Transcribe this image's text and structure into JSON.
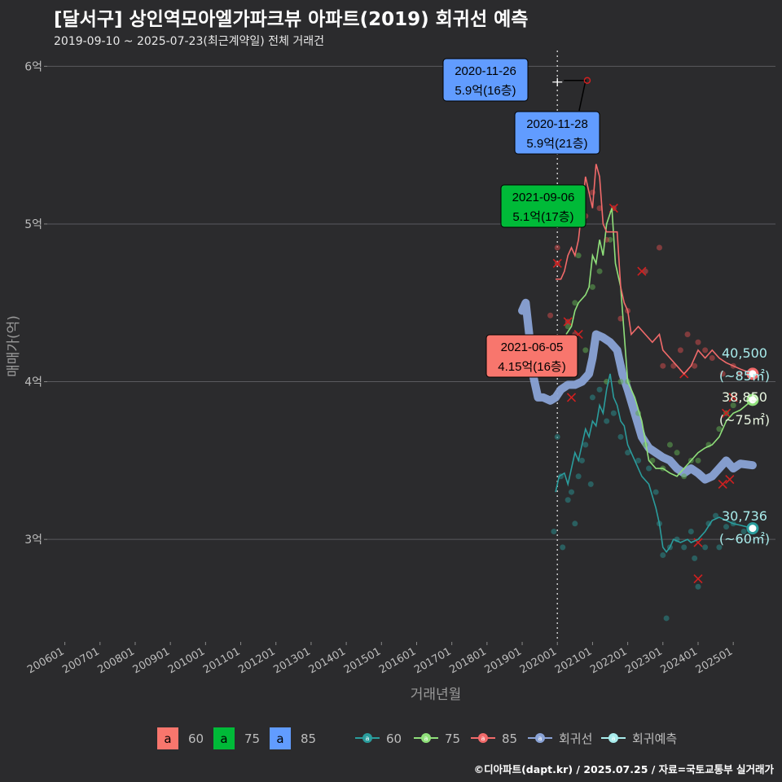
{
  "title": "[달서구] 상인역모아엘가파크뷰 아파트(2019) 회귀선 예측",
  "subtitle": "2019-09-10 ~ 2025-07-23(최근계약일) 전체 거래건",
  "credit": "©디아파트(dapt.kr) / 2025.07.25 / 자료=국토교통부 실거래가",
  "colors": {
    "s60": "#2a9d9d",
    "s75": "#8fe07a",
    "s85": "#f16a6a",
    "reg": "#8aa3d6",
    "pred": "#a8ecec",
    "box60": "#f8766d",
    "box75": "#00ba38",
    "box85": "#619cff"
  },
  "chart_data": {
    "type": "line",
    "xlabel": "거래년월",
    "ylabel": "매매가(억)",
    "x_ticks": [
      "200601",
      "200701",
      "200801",
      "200901",
      "201001",
      "201101",
      "201201",
      "201301",
      "201401",
      "201501",
      "201601",
      "201701",
      "201801",
      "201901",
      "202001",
      "202101",
      "202201",
      "202301",
      "202401",
      "202501"
    ],
    "y_ticks": [
      {
        "v": 3,
        "label": "3억"
      },
      {
        "v": 4,
        "label": "4억"
      },
      {
        "v": 5,
        "label": "5억"
      },
      {
        "v": 6,
        "label": "6억"
      }
    ],
    "xlim": [
      2005.5,
      2026.2
    ],
    "ylim": [
      2.35,
      6.1
    ],
    "vline": 2020.0,
    "series": [
      {
        "name": "60",
        "key": "s60",
        "points": [
          [
            2019.95,
            3.3
          ],
          [
            2020.05,
            3.4
          ],
          [
            2020.2,
            3.42
          ],
          [
            2020.3,
            3.35
          ],
          [
            2020.4,
            3.45
          ],
          [
            2020.5,
            3.55
          ],
          [
            2020.6,
            3.5
          ],
          [
            2020.7,
            3.6
          ],
          [
            2020.8,
            3.7
          ],
          [
            2020.9,
            3.65
          ],
          [
            2021.0,
            3.75
          ],
          [
            2021.1,
            3.72
          ],
          [
            2021.2,
            3.85
          ],
          [
            2021.3,
            3.8
          ],
          [
            2021.4,
            3.95
          ],
          [
            2021.5,
            4.05
          ],
          [
            2021.6,
            3.9
          ],
          [
            2021.7,
            3.85
          ],
          [
            2021.8,
            3.75
          ],
          [
            2021.9,
            3.72
          ],
          [
            2022.0,
            3.6
          ],
          [
            2022.2,
            3.5
          ],
          [
            2022.4,
            3.4
          ],
          [
            2022.6,
            3.35
          ],
          [
            2022.8,
            3.2
          ],
          [
            2022.9,
            3.1
          ],
          [
            2023.0,
            2.95
          ],
          [
            2023.1,
            2.92
          ],
          [
            2023.2,
            2.95
          ],
          [
            2023.3,
            3.0
          ],
          [
            2023.5,
            2.98
          ],
          [
            2023.7,
            3.0
          ],
          [
            2023.8,
            2.98
          ],
          [
            2024.0,
            3.0
          ],
          [
            2024.2,
            3.05
          ],
          [
            2024.4,
            3.12
          ],
          [
            2024.6,
            3.14
          ],
          [
            2024.8,
            3.12
          ],
          [
            2025.0,
            3.1
          ],
          [
            2025.2,
            3.09
          ],
          [
            2025.55,
            3.07
          ]
        ]
      },
      {
        "name": "75",
        "key": "s75",
        "points": [
          [
            2020.25,
            4.3
          ],
          [
            2020.4,
            4.35
          ],
          [
            2020.5,
            4.45
          ],
          [
            2020.6,
            4.5
          ],
          [
            2020.8,
            4.55
          ],
          [
            2020.9,
            4.6
          ],
          [
            2021.0,
            4.8
          ],
          [
            2021.1,
            4.75
          ],
          [
            2021.2,
            4.9
          ],
          [
            2021.3,
            4.8
          ],
          [
            2021.4,
            5.0
          ],
          [
            2021.55,
            5.1
          ],
          [
            2021.65,
            4.75
          ],
          [
            2021.8,
            4.6
          ],
          [
            2021.9,
            4.3
          ],
          [
            2022.0,
            4.0
          ],
          [
            2022.2,
            3.9
          ],
          [
            2022.4,
            3.75
          ],
          [
            2022.6,
            3.5
          ],
          [
            2022.8,
            3.45
          ],
          [
            2023.0,
            3.45
          ],
          [
            2023.2,
            3.42
          ],
          [
            2023.4,
            3.4
          ],
          [
            2023.6,
            3.45
          ],
          [
            2023.8,
            3.5
          ],
          [
            2024.0,
            3.55
          ],
          [
            2024.2,
            3.58
          ],
          [
            2024.4,
            3.6
          ],
          [
            2024.6,
            3.65
          ],
          [
            2024.8,
            3.75
          ],
          [
            2025.0,
            3.8
          ],
          [
            2025.2,
            3.82
          ],
          [
            2025.55,
            3.885
          ]
        ]
      },
      {
        "name": "85",
        "key": "s85",
        "points": [
          [
            2019.95,
            4.65
          ],
          [
            2020.1,
            4.65
          ],
          [
            2020.2,
            4.7
          ],
          [
            2020.3,
            4.8
          ],
          [
            2020.4,
            4.85
          ],
          [
            2020.5,
            4.8
          ],
          [
            2020.6,
            4.9
          ],
          [
            2020.7,
            5.1
          ],
          [
            2020.8,
            5.3
          ],
          [
            2020.9,
            5.2
          ],
          [
            2021.0,
            5.1
          ],
          [
            2021.1,
            5.38
          ],
          [
            2021.2,
            5.3
          ],
          [
            2021.3,
            5.0
          ],
          [
            2021.4,
            4.95
          ],
          [
            2021.5,
            4.95
          ],
          [
            2021.7,
            4.95
          ],
          [
            2021.8,
            4.6
          ],
          [
            2021.9,
            4.5
          ],
          [
            2022.0,
            4.45
          ],
          [
            2022.1,
            4.3
          ],
          [
            2022.3,
            4.35
          ],
          [
            2022.5,
            4.3
          ],
          [
            2022.7,
            4.25
          ],
          [
            2022.9,
            4.3
          ],
          [
            2023.0,
            4.2
          ],
          [
            2023.2,
            4.15
          ],
          [
            2023.4,
            4.1
          ],
          [
            2023.6,
            4.05
          ],
          [
            2023.8,
            4.1
          ],
          [
            2024.0,
            4.2
          ],
          [
            2024.2,
            4.15
          ],
          [
            2024.4,
            4.2
          ],
          [
            2024.6,
            4.15
          ],
          [
            2024.8,
            4.12
          ],
          [
            2025.0,
            4.1
          ],
          [
            2025.2,
            4.08
          ],
          [
            2025.55,
            4.05
          ]
        ]
      },
      {
        "name": "회귀선",
        "key": "reg",
        "points": [
          [
            2019.0,
            4.45
          ],
          [
            2019.1,
            4.5
          ],
          [
            2019.2,
            4.3
          ],
          [
            2019.3,
            4.05
          ],
          [
            2019.45,
            3.9
          ],
          [
            2019.6,
            3.9
          ],
          [
            2019.8,
            3.88
          ],
          [
            2019.95,
            3.9
          ],
          [
            2020.1,
            3.95
          ],
          [
            2020.3,
            3.98
          ],
          [
            2020.5,
            3.98
          ],
          [
            2020.7,
            4.0
          ],
          [
            2020.9,
            4.05
          ],
          [
            2021.0,
            4.15
          ],
          [
            2021.1,
            4.3
          ],
          [
            2021.3,
            4.28
          ],
          [
            2021.5,
            4.25
          ],
          [
            2021.7,
            4.2
          ],
          [
            2021.85,
            4.05
          ],
          [
            2022.0,
            3.95
          ],
          [
            2022.2,
            3.8
          ],
          [
            2022.4,
            3.65
          ],
          [
            2022.6,
            3.58
          ],
          [
            2022.8,
            3.55
          ],
          [
            2023.0,
            3.52
          ],
          [
            2023.2,
            3.5
          ],
          [
            2023.4,
            3.45
          ],
          [
            2023.6,
            3.42
          ],
          [
            2023.8,
            3.45
          ],
          [
            2024.0,
            3.42
          ],
          [
            2024.2,
            3.38
          ],
          [
            2024.4,
            3.4
          ],
          [
            2024.6,
            3.45
          ],
          [
            2024.8,
            3.5
          ],
          [
            2025.0,
            3.45
          ],
          [
            2025.2,
            3.48
          ],
          [
            2025.55,
            3.47
          ]
        ]
      }
    ],
    "scatter": {
      "s60": [
        [
          2019.9,
          3.05
        ],
        [
          2020.0,
          3.65
        ],
        [
          2020.1,
          3.4
        ],
        [
          2020.15,
          2.95
        ],
        [
          2020.3,
          3.25
        ],
        [
          2020.4,
          3.3
        ],
        [
          2020.5,
          3.1
        ],
        [
          2020.6,
          3.4
        ],
        [
          2020.7,
          3.5
        ],
        [
          2020.8,
          3.6
        ],
        [
          2020.95,
          3.35
        ],
        [
          2021.0,
          3.9
        ],
        [
          2021.2,
          3.95
        ],
        [
          2021.4,
          3.75
        ],
        [
          2021.6,
          3.8
        ],
        [
          2021.8,
          3.65
        ],
        [
          2022.0,
          3.55
        ],
        [
          2022.3,
          3.5
        ],
        [
          2022.6,
          3.45
        ],
        [
          2022.8,
          3.3
        ],
        [
          2022.9,
          3.1
        ],
        [
          2023.0,
          2.9
        ],
        [
          2023.1,
          2.5
        ],
        [
          2023.2,
          2.95
        ],
        [
          2023.4,
          3.0
        ],
        [
          2023.6,
          2.95
        ],
        [
          2023.8,
          3.05
        ],
        [
          2023.9,
          2.88
        ],
        [
          2024.0,
          2.7
        ],
        [
          2024.2,
          2.95
        ],
        [
          2024.3,
          3.1
        ],
        [
          2024.5,
          3.15
        ],
        [
          2024.6,
          2.95
        ],
        [
          2024.8,
          3.08
        ],
        [
          2025.0,
          3.1
        ],
        [
          2025.3,
          3.05
        ]
      ],
      "s75": [
        [
          2020.3,
          4.35
        ],
        [
          2020.5,
          4.5
        ],
        [
          2020.6,
          4.8
        ],
        [
          2020.8,
          4.2
        ],
        [
          2021.0,
          4.6
        ],
        [
          2021.2,
          4.7
        ],
        [
          2021.4,
          4.0
        ],
        [
          2021.5,
          4.9
        ],
        [
          2021.8,
          4.0
        ],
        [
          2022.0,
          4.0
        ],
        [
          2022.3,
          3.8
        ],
        [
          2022.5,
          3.6
        ],
        [
          2022.7,
          3.5
        ],
        [
          2023.0,
          3.45
        ],
        [
          2023.2,
          3.6
        ],
        [
          2023.4,
          3.55
        ],
        [
          2023.6,
          3.4
        ],
        [
          2023.8,
          3.5
        ],
        [
          2024.0,
          3.5
        ],
        [
          2024.3,
          3.6
        ],
        [
          2024.6,
          3.7
        ],
        [
          2024.8,
          3.8
        ],
        [
          2025.0,
          3.85
        ]
      ],
      "s85": [
        [
          2019.8,
          4.42
        ],
        [
          2020.0,
          4.75
        ],
        [
          2020.0,
          4.85
        ],
        [
          2020.3,
          4.38
        ],
        [
          2020.5,
          4.3
        ],
        [
          2020.8,
          5.05
        ],
        [
          2021.0,
          5.2
        ],
        [
          2021.2,
          5.1
        ],
        [
          2021.4,
          4.9
        ],
        [
          2021.6,
          5.1
        ],
        [
          2021.8,
          4.4
        ],
        [
          2022.0,
          4.45
        ],
        [
          2022.5,
          4.7
        ],
        [
          2022.9,
          4.85
        ],
        [
          2023.0,
          4.1
        ],
        [
          2023.3,
          4.1
        ],
        [
          2023.5,
          4.2
        ],
        [
          2023.7,
          4.3
        ],
        [
          2023.9,
          4.1
        ],
        [
          2024.0,
          4.25
        ],
        [
          2024.2,
          4.2
        ],
        [
          2024.4,
          4.15
        ],
        [
          2024.7,
          4.05
        ],
        [
          2025.0,
          4.1
        ],
        [
          2025.2,
          4.05
        ]
      ]
    },
    "crosses": [
      [
        2020.4,
        3.9
      ],
      [
        2020.6,
        4.3
      ],
      [
        2021.6,
        5.1
      ],
      [
        2022.4,
        4.7
      ],
      [
        2023.6,
        4.05
      ],
      [
        2024.0,
        2.98
      ],
      [
        2024.0,
        2.75
      ],
      [
        2024.7,
        3.35
      ],
      [
        2024.9,
        3.38
      ],
      [
        2024.8,
        3.8
      ],
      [
        2025.0,
        3.9
      ],
      [
        2020.3,
        4.38
      ],
      [
        2020.0,
        4.75
      ]
    ],
    "end_points": [
      {
        "key": "s85",
        "x": 2025.55,
        "y": 4.05,
        "value": "40,500",
        "area": "(~85㎡)"
      },
      {
        "key": "s75",
        "x": 2025.55,
        "y": 3.885,
        "value": "38,850",
        "area": "(~75㎡)"
      },
      {
        "key": "s60",
        "x": 2025.55,
        "y": 3.07,
        "value": "30,736",
        "area": "(~60㎡)"
      }
    ],
    "annotations": [
      {
        "date": "2020-11-26",
        "price": "5.9억(16층)",
        "key": "box85"
      },
      {
        "date": "2020-11-28",
        "price": "5.9억(21층)",
        "key": "box85"
      },
      {
        "date": "2021-09-06",
        "price": "5.1억(17층)",
        "key": "box75"
      },
      {
        "date": "2021-06-05",
        "price": "4.15억(16층)",
        "key": "box60"
      }
    ],
    "legend": {
      "boxes": [
        {
          "name": "60",
          "key": "box60"
        },
        {
          "name": "75",
          "key": "box75"
        },
        {
          "name": "85",
          "key": "box85"
        }
      ],
      "box_glyph": "a",
      "lines": [
        {
          "name": "60",
          "key": "s60"
        },
        {
          "name": "75",
          "key": "s75"
        },
        {
          "name": "85",
          "key": "s85"
        },
        {
          "name": "회귀선",
          "key": "reg"
        },
        {
          "name": "회귀예측",
          "key": "pred"
        }
      ],
      "line_glyph": "a"
    }
  }
}
